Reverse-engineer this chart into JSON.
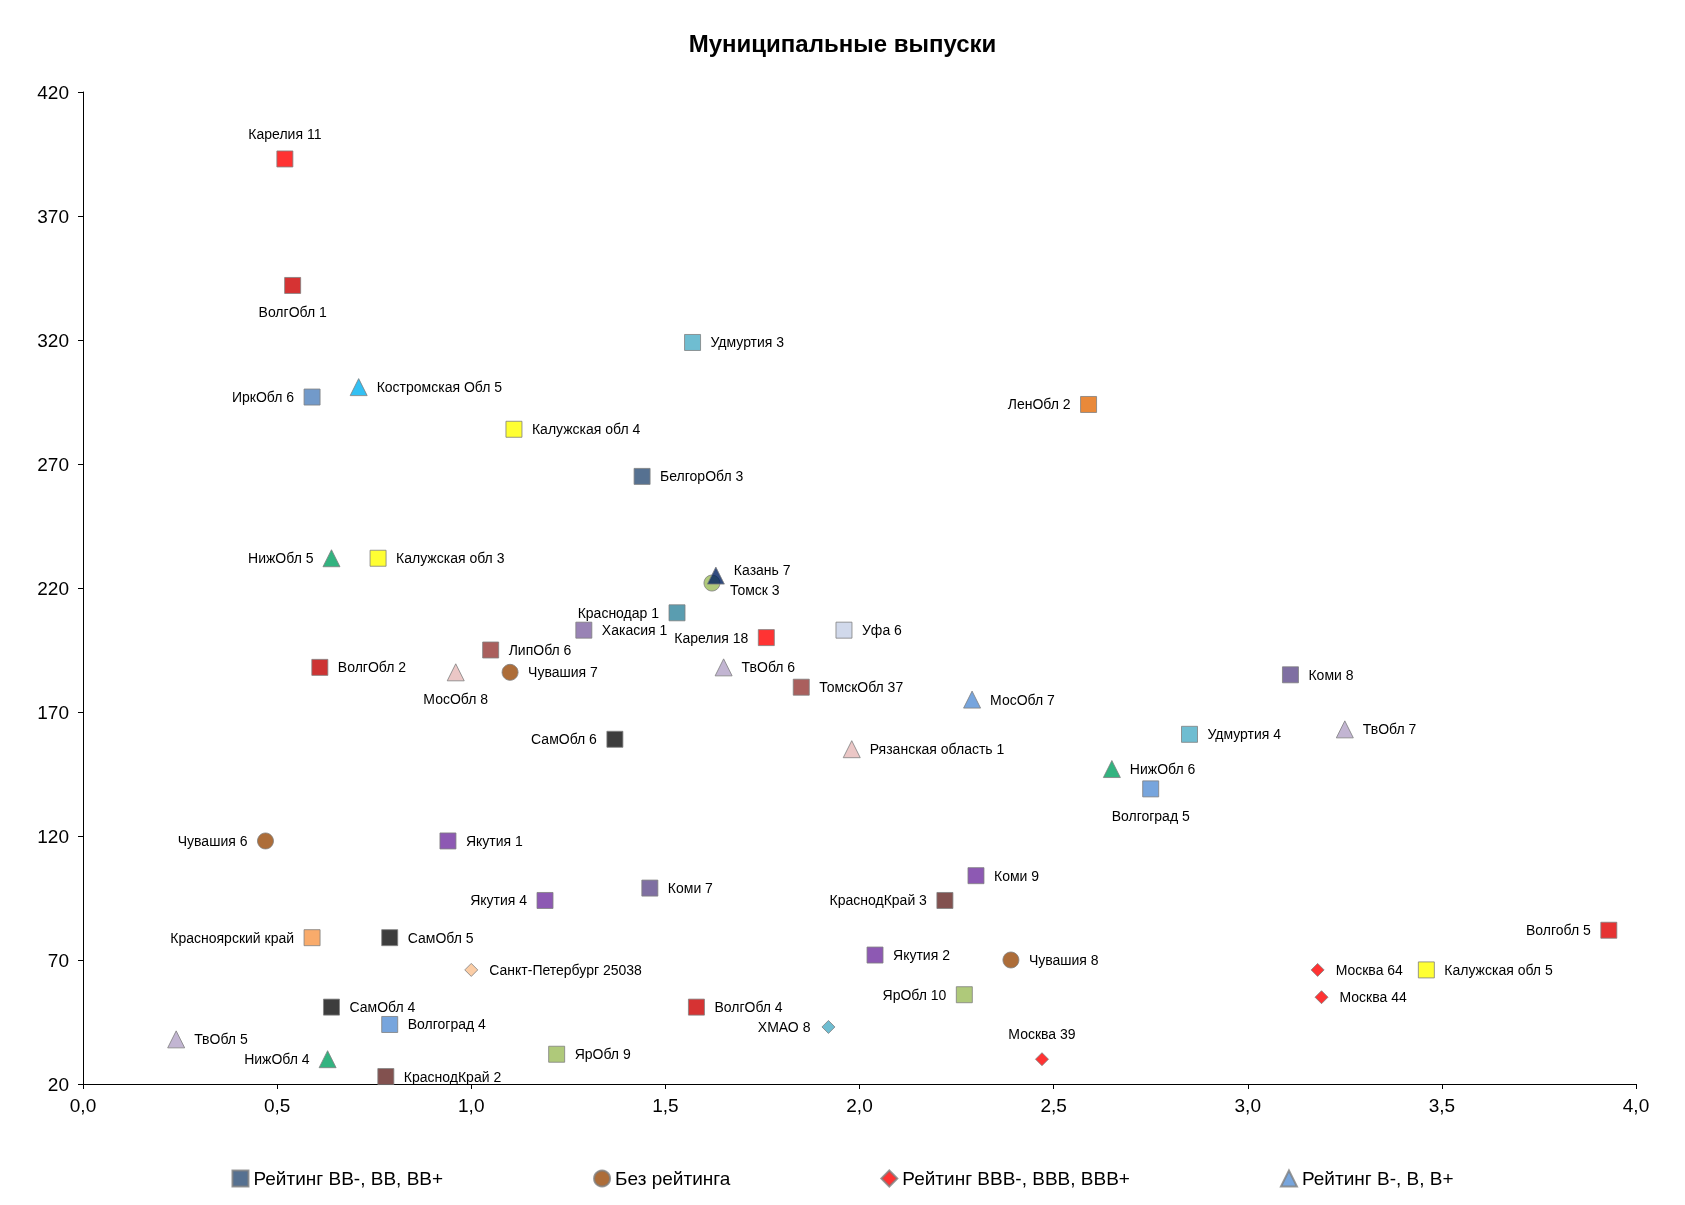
{
  "chart_data": {
    "type": "scatter",
    "title": "Муниципальные выпуски",
    "xlim": [
      0,
      4
    ],
    "ylim": [
      20,
      420
    ],
    "xticks": [
      {
        "value": 0,
        "label": "0,0"
      },
      {
        "value": 0.5,
        "label": "0,5"
      },
      {
        "value": 1,
        "label": "1,0"
      },
      {
        "value": 1.5,
        "label": "1,5"
      },
      {
        "value": 2,
        "label": "2,0"
      },
      {
        "value": 2.5,
        "label": "2,5"
      },
      {
        "value": 3,
        "label": "3,0"
      },
      {
        "value": 3.5,
        "label": "3,5"
      },
      {
        "value": 4,
        "label": "4,0"
      }
    ],
    "yticks": [
      20,
      70,
      120,
      170,
      220,
      270,
      320,
      370,
      420
    ],
    "grid": false,
    "legend": "bottom",
    "series": [
      {
        "name": "Рейтинг BB-, BB, BB+",
        "marker": "square",
        "color": "#2c4d75",
        "x": [
          0.52,
          0.54,
          0.59,
          1.11,
          1.57,
          2.59,
          1.44,
          0.76,
          1.53,
          1.29,
          1.05,
          1.76,
          0.61,
          1.85,
          1.96,
          3.11,
          1.37,
          2.85,
          2.75,
          0.94,
          1.46,
          2.3,
          1.19,
          2.22,
          3.93,
          0.59,
          0.79,
          2.04,
          3.46,
          2.27,
          0.64,
          1.58,
          0.79,
          1.22,
          0.78
        ],
        "values": [
          393,
          342,
          297,
          284,
          319,
          294,
          265,
          232,
          210,
          203,
          195,
          200,
          188,
          180,
          203,
          185,
          159,
          161,
          139,
          118,
          99,
          104,
          94,
          94,
          82,
          79,
          79,
          72,
          66,
          56,
          51,
          51,
          44,
          32,
          23
        ],
        "colors": [
          "#ff0000",
          "#cc0000",
          "#4f81bd",
          "#ffff00",
          "#4bacc6",
          "#e36c09",
          "#2c4d75",
          "#ffff00",
          "#31859c",
          "#8064a2",
          "#953735",
          "#ff0000",
          "#c00000",
          "#953735",
          "#c6d0e6",
          "#5f4b8b",
          "#0d0d0d",
          "#4bacc6",
          "#558ed5",
          "#7030a0",
          "#5f4b8b",
          "#7030a0",
          "#7030a0",
          "#632523",
          "#e00000",
          "#f79646",
          "#0d0d0d",
          "#7030a0",
          "#ffff00",
          "#9bbb59",
          "#0d0d0d",
          "#cc0000",
          "#558ed5",
          "#9bbb59",
          "#632523"
        ]
      },
      {
        "name": "Без рейтинга",
        "marker": "circle",
        "color": "#984807",
        "x": [
          1.62,
          1.1,
          0.47,
          2.39
        ],
        "values": [
          222,
          186,
          118,
          70
        ],
        "colors": [
          "#9bbb59",
          "#984807",
          "#984807",
          "#984807"
        ]
      },
      {
        "name": "Рейтинг BBB-, BBB, BBB+",
        "marker": "diamond",
        "color": "#ff0000",
        "x": [
          1.0,
          1.92,
          2.47,
          3.18,
          3.19
        ],
        "values": [
          66,
          43,
          30,
          66,
          55
        ],
        "colors": [
          "#fac090",
          "#4bacc6",
          "#ff0000",
          "#ff0000",
          "#ff0000"
        ]
      },
      {
        "name": "Рейтинг B-, B, B+",
        "marker": "triangle",
        "color": "#558ed5",
        "x": [
          0.71,
          0.64,
          1.63,
          1.65,
          0.96,
          2.29,
          1.98,
          3.25,
          2.65,
          0.24,
          0.63
        ],
        "values": [
          301,
          232,
          225,
          188,
          186,
          175,
          155,
          163,
          147,
          38,
          30
        ],
        "colors": [
          "#00b0f0",
          "#00a060",
          "#002060",
          "#b3a2c7",
          "#e6b9b8",
          "#558ed5",
          "#e6b9b8",
          "#b3a2c7",
          "#00a060",
          "#b3a2c7",
          "#00a060"
        ]
      }
    ],
    "annotations": [
      {
        "text": "Карелия 11",
        "x": 0.52,
        "y": 393
      },
      {
        "text": "ВолгОбл 1",
        "x": 0.54,
        "y": 342
      },
      {
        "text": "ИркОбл 6",
        "x": 0.59,
        "y": 297
      },
      {
        "text": "Калужская обл 4",
        "x": 1.11,
        "y": 284
      },
      {
        "text": "Удмуртия 3",
        "x": 1.57,
        "y": 319
      },
      {
        "text": "ЛенОбл 2",
        "x": 2.59,
        "y": 294
      },
      {
        "text": "БелгорОбл 3",
        "x": 1.44,
        "y": 265
      },
      {
        "text": "Калужская обл 3",
        "x": 0.76,
        "y": 232
      },
      {
        "text": "Краснодар 1",
        "x": 1.53,
        "y": 210
      },
      {
        "text": "Хакасия 1",
        "x": 1.29,
        "y": 203
      },
      {
        "text": "ЛипОбл 6",
        "x": 1.05,
        "y": 195
      },
      {
        "text": "Карелия 18",
        "x": 1.76,
        "y": 200
      },
      {
        "text": "ВолгОбл 2",
        "x": 0.61,
        "y": 188
      },
      {
        "text": "ТомскОбл 37",
        "x": 1.85,
        "y": 180
      },
      {
        "text": "Уфа 6",
        "x": 1.96,
        "y": 203
      },
      {
        "text": "Коми 8",
        "x": 3.11,
        "y": 185
      },
      {
        "text": "СамОбл 6",
        "x": 1.37,
        "y": 159
      },
      {
        "text": "Удмуртия 4",
        "x": 2.85,
        "y": 161
      },
      {
        "text": "Волгоград 5",
        "x": 2.75,
        "y": 139
      },
      {
        "text": "Якутия 1",
        "x": 0.94,
        "y": 118
      },
      {
        "text": "Коми 7",
        "x": 1.46,
        "y": 99
      },
      {
        "text": "Коми 9",
        "x": 2.3,
        "y": 104
      },
      {
        "text": "Якутия 4",
        "x": 1.19,
        "y": 94
      },
      {
        "text": "КраснодКрай 3",
        "x": 2.22,
        "y": 94
      },
      {
        "text": "Волгобл 5",
        "x": 3.93,
        "y": 82
      },
      {
        "text": "Красноярский край",
        "x": 0.59,
        "y": 79
      },
      {
        "text": "СамОбл 5",
        "x": 0.79,
        "y": 79
      },
      {
        "text": "Якутия 2",
        "x": 2.04,
        "y": 72
      },
      {
        "text": "Калужская обл 5",
        "x": 3.46,
        "y": 66
      },
      {
        "text": "ЯрОбл 10",
        "x": 2.27,
        "y": 56
      },
      {
        "text": "СамОбл 4",
        "x": 0.64,
        "y": 51
      },
      {
        "text": "ВолгОбл 4",
        "x": 1.58,
        "y": 51
      },
      {
        "text": "Волгоград 4",
        "x": 0.79,
        "y": 44
      },
      {
        "text": "ЯрОбл 9",
        "x": 1.22,
        "y": 32
      },
      {
        "text": "КраснодКрай 2",
        "x": 0.78,
        "y": 23
      },
      {
        "text": "Томск 3",
        "x": 1.62,
        "y": 222
      },
      {
        "text": "Чувашия 7",
        "x": 1.1,
        "y": 186
      },
      {
        "text": "Чувашия 6",
        "x": 0.47,
        "y": 118
      },
      {
        "text": "Чувашия 8",
        "x": 2.39,
        "y": 70
      },
      {
        "text": "Санкт-Петербург 25038",
        "x": 1.0,
        "y": 66
      },
      {
        "text": "ХМАО 8",
        "x": 1.92,
        "y": 43
      },
      {
        "text": "Москва 39",
        "x": 2.47,
        "y": 30
      },
      {
        "text": "Москва 64",
        "x": 3.18,
        "y": 66
      },
      {
        "text": "Москва 44",
        "x": 3.19,
        "y": 55
      },
      {
        "text": "Костромская Обл 5",
        "x": 0.71,
        "y": 301
      },
      {
        "text": "НижОбл 5",
        "x": 0.64,
        "y": 232
      },
      {
        "text": "Казань 7",
        "x": 1.63,
        "y": 225
      },
      {
        "text": "ТвОбл 6",
        "x": 1.65,
        "y": 188
      },
      {
        "text": "МосОбл 8",
        "x": 0.96,
        "y": 186
      },
      {
        "text": "МосОбл 7",
        "x": 2.29,
        "y": 175
      },
      {
        "text": "Рязанская область 1",
        "x": 1.98,
        "y": 155
      },
      {
        "text": "ТвОбл 7",
        "x": 3.25,
        "y": 163
      },
      {
        "text": "НижОбл 6",
        "x": 2.65,
        "y": 147
      },
      {
        "text": "ТвОбл 5",
        "x": 0.24,
        "y": 38
      },
      {
        "text": "НижОбл 4",
        "x": 0.63,
        "y": 30
      }
    ]
  }
}
